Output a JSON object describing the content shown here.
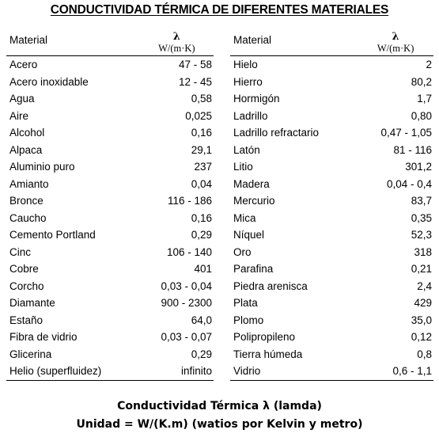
{
  "title": "CONDUCTIVIDAD TÉRMICA DE DIFERENTES MATERIALES",
  "header": {
    "material": "Material",
    "lambda": "λ",
    "unit": "W/(m·K)"
  },
  "left_rows": [
    {
      "name": "Acero",
      "value": "47 - 58"
    },
    {
      "name": "Acero inoxidable",
      "value": "12 - 45"
    },
    {
      "name": "Agua",
      "value": "0,58"
    },
    {
      "name": "Aire",
      "value": "0,025"
    },
    {
      "name": "Alcohol",
      "value": "0,16"
    },
    {
      "name": "Alpaca",
      "value": "29,1"
    },
    {
      "name": "Aluminio puro",
      "value": "237"
    },
    {
      "name": "Amianto",
      "value": "0,04"
    },
    {
      "name": "Bronce",
      "value": "116 - 186"
    },
    {
      "name": "Caucho",
      "value": "0,16"
    },
    {
      "name": "Cemento Portland",
      "value": "0,29"
    },
    {
      "name": "Cinc",
      "value": "106 - 140"
    },
    {
      "name": "Cobre",
      "value": "401"
    },
    {
      "name": "Corcho",
      "value": "0,03 - 0,04"
    },
    {
      "name": "Diamante",
      "value": "900 - 2300"
    },
    {
      "name": "Estaño",
      "value": "64,0"
    },
    {
      "name": "Fibra de vidrio",
      "value": "0,03 - 0,07"
    },
    {
      "name": "Glicerina",
      "value": "0,29"
    },
    {
      "name": "Helio (superfluidez)",
      "value": "infinito"
    }
  ],
  "right_rows": [
    {
      "name": "Hielo",
      "value": "2"
    },
    {
      "name": "Hierro",
      "value": "80,2"
    },
    {
      "name": "Hormigón",
      "value": "1,7"
    },
    {
      "name": "Ladrillo",
      "value": "0,80"
    },
    {
      "name": "Ladrillo refractario",
      "value": "0,47 - 1,05"
    },
    {
      "name": "Latón",
      "value": "81 - 116"
    },
    {
      "name": "Litio",
      "value": "301,2"
    },
    {
      "name": "Madera",
      "value": "0,04 - 0,4"
    },
    {
      "name": "Mercurio",
      "value": "83,7"
    },
    {
      "name": "Mica",
      "value": "0,35"
    },
    {
      "name": "Níquel",
      "value": "52,3"
    },
    {
      "name": "Oro",
      "value": "318"
    },
    {
      "name": "Parafina",
      "value": "0,21"
    },
    {
      "name": "Piedra arenisca",
      "value": "2,4"
    },
    {
      "name": "Plata",
      "value": "429"
    },
    {
      "name": "Plomo",
      "value": "35,0"
    },
    {
      "name": "Polipropileno",
      "value": "0,12"
    },
    {
      "name": "Tierra húmeda",
      "value": "0,8"
    },
    {
      "name": "Vidrio",
      "value": "0,6 - 1,1"
    }
  ],
  "footer": {
    "line1": "Conductividad Térmica λ (lamda)",
    "line2": "Unidad = W/(K.m) (watios por Kelvin y metro)"
  }
}
